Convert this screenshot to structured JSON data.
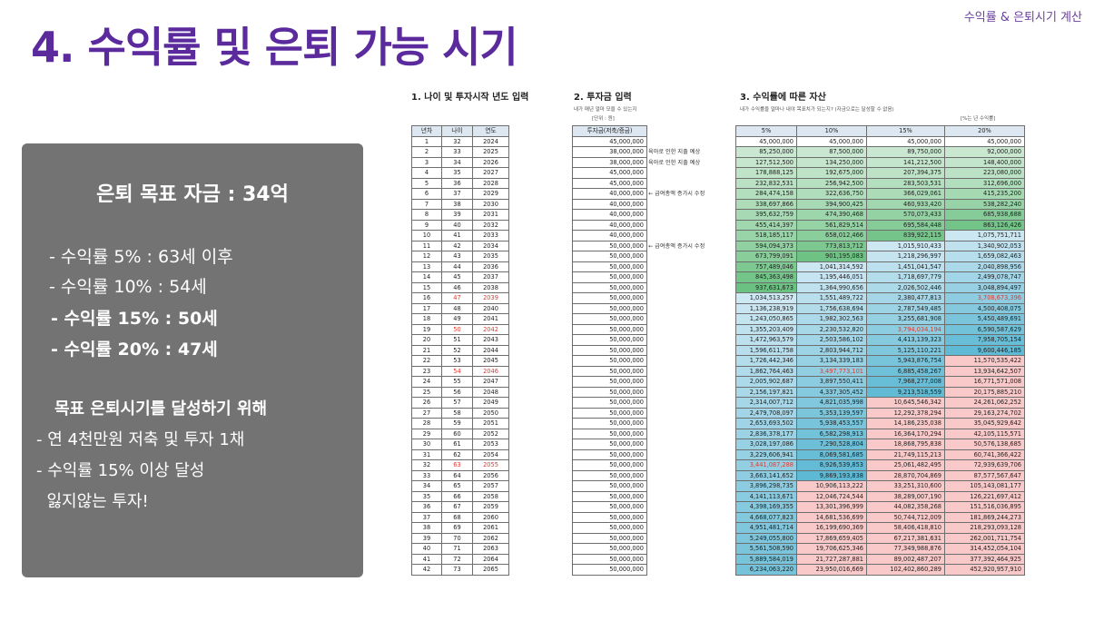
{
  "header": {
    "tag": "수익률 & 은퇴시기 계산",
    "title": "4. 수익률 및 은퇴 가능 시기"
  },
  "panel": {
    "goal": "은퇴 목표 자금 : 34억",
    "rates": [
      "- 수익률   5% : 63세 이후",
      "- 수익률 10% : 54세",
      "- 수익률 15% : 50세",
      "- 수익률 20% : 47세"
    ],
    "heading": "목표 은퇴시기를 달성하기 위해",
    "notes": [
      "- 연 4천만원 저축 및 투자 1채",
      "- 수익률 15% 이상 달성",
      "  잃지않는 투자!"
    ]
  },
  "sections": {
    "s1": "1. 나이 및 투자시작 년도 입력",
    "s2": "2. 투자금 입력",
    "s2_note": "내가 매년 얼마 모을 수 있는지",
    "s2_unit": "[단위 : 원]",
    "s3": "3. 수익률에 따른 자산",
    "s3_note": "내가 수익률을 얼마나 내야 목표치가 되는지? (자금으로는 달성할 수 없음)",
    "s3_unit": "[%는 년 수익률]"
  },
  "table1": {
    "headers": [
      "년차",
      "나이",
      "연도"
    ],
    "rows": [
      [
        "1",
        "32",
        "2024"
      ],
      [
        "2",
        "33",
        "2025"
      ],
      [
        "3",
        "34",
        "2026"
      ],
      [
        "4",
        "35",
        "2027"
      ],
      [
        "5",
        "36",
        "2028"
      ],
      [
        "6",
        "37",
        "2029"
      ],
      [
        "7",
        "38",
        "2030"
      ],
      [
        "8",
        "39",
        "2031"
      ],
      [
        "9",
        "40",
        "2032"
      ],
      [
        "10",
        "41",
        "2033"
      ],
      [
        "11",
        "42",
        "2034"
      ],
      [
        "12",
        "43",
        "2035"
      ],
      [
        "13",
        "44",
        "2036"
      ],
      [
        "14",
        "45",
        "2037"
      ],
      [
        "15",
        "46",
        "2038"
      ],
      [
        "16",
        "47",
        "2039"
      ],
      [
        "17",
        "48",
        "2040"
      ],
      [
        "18",
        "49",
        "2041"
      ],
      [
        "19",
        "50",
        "2042"
      ],
      [
        "20",
        "51",
        "2043"
      ],
      [
        "21",
        "52",
        "2044"
      ],
      [
        "22",
        "53",
        "2045"
      ],
      [
        "23",
        "54",
        "2046"
      ],
      [
        "24",
        "55",
        "2047"
      ],
      [
        "25",
        "56",
        "2048"
      ],
      [
        "26",
        "57",
        "2049"
      ],
      [
        "27",
        "58",
        "2050"
      ],
      [
        "28",
        "59",
        "2051"
      ],
      [
        "29",
        "60",
        "2052"
      ],
      [
        "30",
        "61",
        "2053"
      ],
      [
        "31",
        "62",
        "2054"
      ],
      [
        "32",
        "63",
        "2055"
      ],
      [
        "33",
        "64",
        "2056"
      ],
      [
        "34",
        "65",
        "2057"
      ],
      [
        "35",
        "66",
        "2058"
      ],
      [
        "36",
        "67",
        "2059"
      ],
      [
        "37",
        "68",
        "2060"
      ],
      [
        "38",
        "69",
        "2061"
      ],
      [
        "39",
        "70",
        "2062"
      ],
      [
        "40",
        "71",
        "2063"
      ],
      [
        "41",
        "72",
        "2064"
      ],
      [
        "42",
        "73",
        "2065"
      ]
    ],
    "highlight_rows": [
      16,
      19,
      23,
      32
    ]
  },
  "table2": {
    "header": "투자금(저축/증금)",
    "values": [
      "45,000,000",
      "38,000,000",
      "38,000,000",
      "45,000,000",
      "45,000,000",
      "40,000,000",
      "40,000,000",
      "40,000,000",
      "40,000,000",
      "40,000,000",
      "50,000,000",
      "50,000,000",
      "50,000,000",
      "50,000,000",
      "50,000,000",
      "50,000,000",
      "50,000,000",
      "50,000,000",
      "50,000,000",
      "50,000,000",
      "50,000,000",
      "50,000,000",
      "50,000,000",
      "50,000,000",
      "50,000,000",
      "50,000,000",
      "50,000,000",
      "50,000,000",
      "50,000,000",
      "50,000,000",
      "50,000,000",
      "50,000,000",
      "50,000,000",
      "50,000,000",
      "50,000,000",
      "50,000,000",
      "50,000,000",
      "50,000,000",
      "50,000,000",
      "50,000,000",
      "50,000,000",
      "50,000,000"
    ],
    "side_notes": [
      {
        "row": 2,
        "text": "육아로 인한 지출 예상"
      },
      {
        "row": 3,
        "text": "육아로 인한 지출 예상"
      },
      {
        "row": 6,
        "text": "← 급여총액 증가시 수정"
      },
      {
        "row": 11,
        "text": "← 급여총액 증가시 수정"
      }
    ]
  },
  "table3": {
    "headers": [
      "5%",
      "10%",
      "15%",
      "20%"
    ],
    "rows": [
      [
        "45,000,000",
        "45,000,000",
        "45,000,000",
        "45,000,000"
      ],
      [
        "85,250,000",
        "87,500,000",
        "89,750,000",
        "92,000,000"
      ],
      [
        "127,512,500",
        "134,250,000",
        "141,212,500",
        "148,400,000"
      ],
      [
        "178,888,125",
        "192,675,000",
        "207,394,375",
        "223,080,000"
      ],
      [
        "232,832,531",
        "256,942,500",
        "283,503,531",
        "312,696,000"
      ],
      [
        "284,474,158",
        "322,636,750",
        "366,029,061",
        "415,235,200"
      ],
      [
        "338,697,866",
        "394,900,425",
        "460,933,420",
        "538,282,240"
      ],
      [
        "395,632,759",
        "474,390,468",
        "570,073,433",
        "685,938,688"
      ],
      [
        "455,414,397",
        "561,829,514",
        "695,584,448",
        "863,126,426"
      ],
      [
        "518,185,117",
        "658,012,466",
        "839,922,115",
        "1,075,751,711"
      ],
      [
        "594,094,373",
        "773,813,712",
        "1,015,910,433",
        "1,340,902,053"
      ],
      [
        "673,799,091",
        "901,195,083",
        "1,218,296,997",
        "1,659,082,463"
      ],
      [
        "757,489,046",
        "1,041,314,592",
        "1,451,041,547",
        "2,040,898,956"
      ],
      [
        "845,363,498",
        "1,195,446,051",
        "1,718,697,779",
        "2,499,078,747"
      ],
      [
        "937,631,673",
        "1,364,990,656",
        "2,026,502,446",
        "3,048,894,497"
      ],
      [
        "1,034,513,257",
        "1,551,489,722",
        "2,380,477,813",
        "3,708,673,396"
      ],
      [
        "1,136,238,919",
        "1,756,638,694",
        "2,787,549,485",
        "4,500,408,075"
      ],
      [
        "1,243,050,865",
        "1,982,302,563",
        "3,255,681,908",
        "5,450,489,691"
      ],
      [
        "1,355,203,409",
        "2,230,532,820",
        "3,794,034,194",
        "6,590,587,629"
      ],
      [
        "1,472,963,579",
        "2,503,586,102",
        "4,413,139,323",
        "7,958,705,154"
      ],
      [
        "1,596,611,758",
        "2,803,944,712",
        "5,125,110,221",
        "9,600,446,185"
      ],
      [
        "1,726,442,346",
        "3,134,339,183",
        "5,943,876,754",
        "11,570,535,422"
      ],
      [
        "1,862,764,463",
        "3,497,773,101",
        "6,885,458,267",
        "13,934,642,507"
      ],
      [
        "2,005,902,687",
        "3,897,550,411",
        "7,968,277,008",
        "16,771,571,008"
      ],
      [
        "2,156,197,821",
        "4,337,305,452",
        "9,213,518,559",
        "20,175,885,210"
      ],
      [
        "2,314,007,712",
        "4,821,035,998",
        "10,645,546,342",
        "24,261,062,252"
      ],
      [
        "2,479,708,097",
        "5,353,139,597",
        "12,292,378,294",
        "29,163,274,702"
      ],
      [
        "2,653,693,502",
        "5,938,453,557",
        "14,186,235,038",
        "35,045,929,642"
      ],
      [
        "2,836,378,177",
        "6,582,298,913",
        "16,364,170,294",
        "42,105,115,571"
      ],
      [
        "3,028,197,086",
        "7,290,528,804",
        "18,868,795,838",
        "50,576,138,685"
      ],
      [
        "3,229,606,941",
        "8,069,581,685",
        "21,749,115,213",
        "60,741,366,422"
      ],
      [
        "3,441,087,288",
        "8,926,539,853",
        "25,061,482,495",
        "72,939,639,706"
      ],
      [
        "3,663,141,652",
        "9,869,193,838",
        "28,870,704,869",
        "87,577,567,647"
      ],
      [
        "3,896,298,735",
        "10,906,113,222",
        "33,251,310,600",
        "105,143,081,177"
      ],
      [
        "4,141,113,671",
        "12,046,724,544",
        "38,289,007,190",
        "126,221,697,412"
      ],
      [
        "4,398,169,355",
        "13,301,396,999",
        "44,082,358,268",
        "151,516,036,895"
      ],
      [
        "4,668,077,823",
        "14,681,536,699",
        "50,744,712,009",
        "181,869,244,273"
      ],
      [
        "4,951,481,714",
        "16,199,690,369",
        "58,406,418,810",
        "218,293,093,128"
      ],
      [
        "5,249,055,800",
        "17,869,659,405",
        "67,217,381,631",
        "262,001,711,754"
      ],
      [
        "5,561,508,590",
        "19,706,625,346",
        "77,349,988,876",
        "314,452,054,104"
      ],
      [
        "5,889,584,019",
        "21,727,287,881",
        "89,002,487,207",
        "377,392,464,925"
      ],
      [
        "6,234,063,220",
        "23,950,016,669",
        "102,402,860,289",
        "452,920,957,910"
      ]
    ],
    "red_cells": [
      [
        16,
        3
      ],
      [
        19,
        2
      ],
      [
        23,
        1
      ],
      [
        32,
        0
      ]
    ],
    "colors": {
      "green_dark": "#63be7b",
      "green_light": "#d4ecd9",
      "blue_light": "#cfe8f3",
      "blue_dark": "#5db9d4",
      "pink": "#f8c9c8",
      "red_text": "#e0392f"
    }
  }
}
